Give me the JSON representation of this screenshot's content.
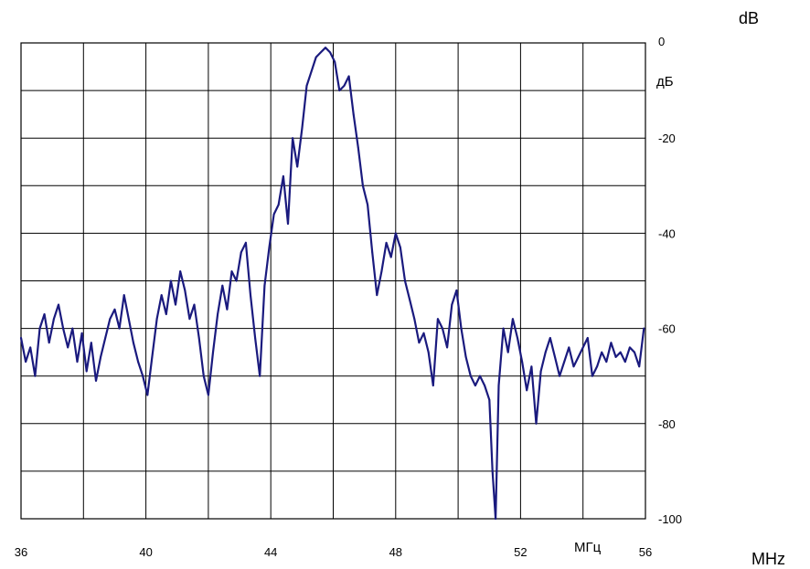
{
  "chart_data": {
    "type": "line",
    "xlabel": "МГц",
    "ylabel": "дБ",
    "extra_xlabel": "MHz",
    "extra_ylabel": "dB",
    "xlim": [
      36,
      56
    ],
    "ylim": [
      -100,
      0
    ],
    "x_tick_labels": [
      "36",
      "40",
      "44",
      "48",
      "52",
      "56"
    ],
    "y_tick_labels": [
      "0",
      "-20",
      "-40",
      "-60",
      "-80",
      "-100"
    ],
    "grid": true,
    "line_color": "#1a1a7e",
    "series": [
      {
        "x": [
          36.0,
          36.15,
          36.3,
          36.45,
          36.6,
          36.75,
          36.9,
          37.05,
          37.2,
          37.35,
          37.5,
          37.65,
          37.8,
          37.95,
          38.1,
          38.25,
          38.4,
          38.55,
          38.7,
          38.85,
          39.0,
          39.15,
          39.3,
          39.45,
          39.6,
          39.75,
          39.9,
          40.05,
          40.2,
          40.35,
          40.5,
          40.65,
          40.8,
          40.95,
          41.1,
          41.25,
          41.4,
          41.55,
          41.7,
          41.85,
          42.0,
          42.15,
          42.3,
          42.45,
          42.6,
          42.75,
          42.9,
          43.05,
          43.2,
          43.35,
          43.5,
          43.65,
          43.8,
          43.95,
          44.1,
          44.25,
          44.4,
          44.55,
          44.7,
          44.85,
          45.0,
          45.15,
          45.3,
          45.45,
          45.6,
          45.75,
          45.9,
          46.05,
          46.2,
          46.35,
          46.5,
          46.65,
          46.8,
          46.95,
          47.1,
          47.25,
          47.4,
          47.55,
          47.7,
          47.85,
          48.0,
          48.15,
          48.3,
          48.45,
          48.6,
          48.75,
          48.9,
          49.05,
          49.2,
          49.35,
          49.5,
          49.65,
          49.8,
          49.95,
          50.1,
          50.25,
          50.4,
          50.55,
          50.7,
          50.85,
          51.0,
          51.1,
          51.2,
          51.3,
          51.45,
          51.6,
          51.75,
          51.9,
          52.05,
          52.2,
          52.35,
          52.5,
          52.65,
          52.8,
          52.95,
          53.1,
          53.25,
          53.4,
          53.55,
          53.7,
          53.85,
          54.0,
          54.15,
          54.3,
          54.45,
          54.6,
          54.75,
          54.9,
          55.05,
          55.2,
          55.35,
          55.5,
          55.65,
          55.8,
          55.95
        ],
        "y": [
          -62,
          -67,
          -64,
          -70,
          -60,
          -57,
          -63,
          -58,
          -55,
          -60,
          -64,
          -60,
          -67,
          -61,
          -69,
          -63,
          -71,
          -66,
          -62,
          -58,
          -56,
          -60,
          -53,
          -58,
          -63,
          -67,
          -70,
          -74,
          -66,
          -58,
          -53,
          -57,
          -50,
          -55,
          -48,
          -52,
          -58,
          -55,
          -62,
          -70,
          -74,
          -65,
          -57,
          -51,
          -56,
          -48,
          -50,
          -44,
          -42,
          -53,
          -62,
          -70,
          -51,
          -43,
          -36,
          -34,
          -28,
          -38,
          -20,
          -26,
          -18,
          -9,
          -6,
          -3,
          -2,
          -1,
          -2,
          -4,
          -10,
          -9,
          -7,
          -15,
          -22,
          -30,
          -34,
          -44,
          -53,
          -48,
          -42,
          -45,
          -40,
          -43,
          -50,
          -54,
          -58,
          -63,
          -61,
          -65,
          -72,
          -58,
          -60,
          -64,
          -55,
          -52,
          -60,
          -66,
          -70,
          -72,
          -70,
          -72,
          -75,
          -90,
          -100,
          -72,
          -60,
          -65,
          -58,
          -62,
          -67,
          -73,
          -68,
          -80,
          -69,
          -65,
          -62,
          -66,
          -70,
          -67,
          -64,
          -68,
          -66,
          -64,
          -62,
          -70,
          -68,
          -65,
          -67,
          -63,
          -66,
          -65,
          -67,
          -64,
          -65,
          -68,
          -60
        ]
      }
    ]
  }
}
